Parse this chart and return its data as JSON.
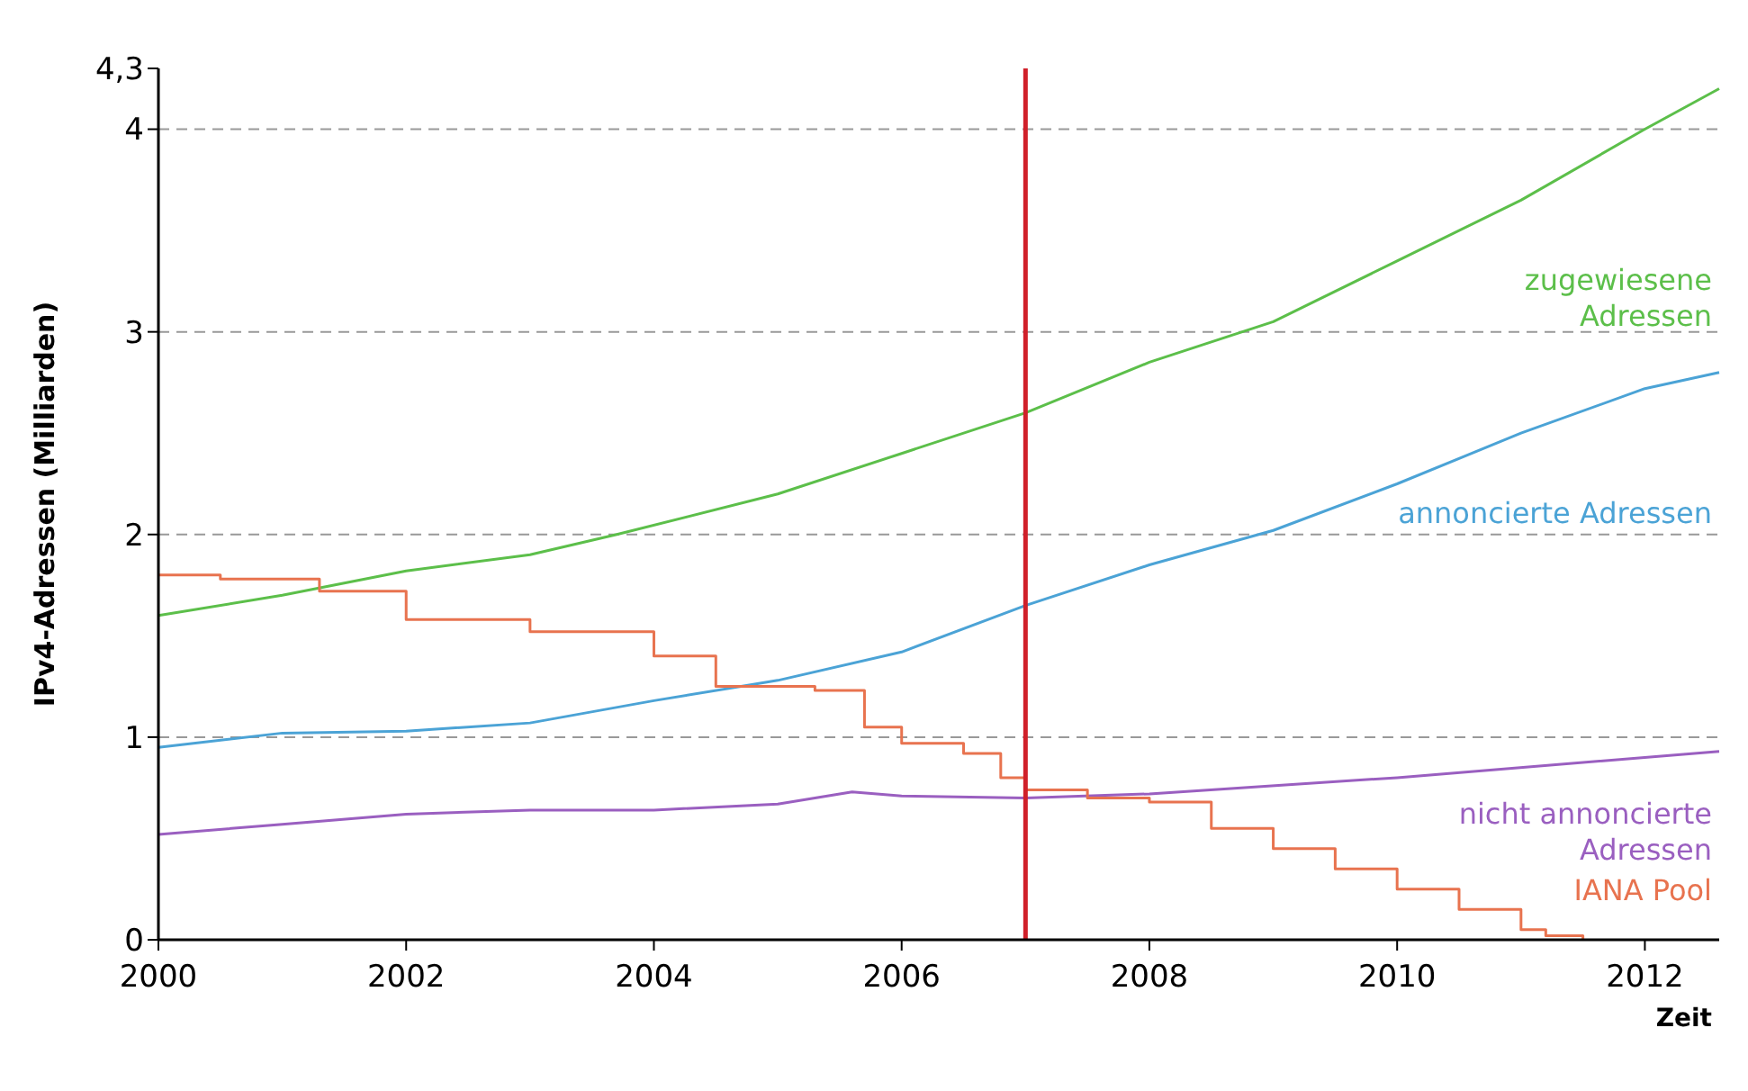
{
  "chart_data": {
    "type": "line",
    "xlabel": "Zeit",
    "ylabel": "IPv4-Adressen (Milliarden)",
    "xlim": [
      2000,
      2012.6
    ],
    "xticks": [
      2000,
      2002,
      2004,
      2006,
      2008,
      2010,
      2012
    ],
    "ylim": [
      0,
      4.3
    ],
    "yticks": [
      0,
      1,
      2,
      3,
      4,
      {
        "value": 4.3,
        "label": "4,3"
      }
    ],
    "grid": "y",
    "ref_lines": [
      {
        "axis": "x",
        "value": 2007,
        "color": "#d0202a"
      }
    ],
    "series": [
      {
        "name": "zugewiesene Adressen",
        "color": "#5cbf4a",
        "x": [
          2000,
          2001,
          2002,
          2003,
          2003.7,
          2005,
          2006,
          2007,
          2008,
          2009,
          2010,
          2011,
          2012,
          2012.6
        ],
        "values": [
          1.6,
          1.7,
          1.82,
          1.9,
          2.0,
          2.2,
          2.4,
          2.6,
          2.85,
          3.05,
          3.35,
          3.65,
          4.0,
          4.2
        ]
      },
      {
        "name": "annoncierte Adressen",
        "color": "#4ba3d6",
        "x": [
          2000,
          2001,
          2002,
          2003,
          2004,
          2005,
          2006,
          2007,
          2008,
          2009,
          2010,
          2011,
          2012,
          2012.6
        ],
        "values": [
          0.95,
          1.02,
          1.03,
          1.07,
          1.18,
          1.28,
          1.42,
          1.65,
          1.85,
          2.02,
          2.25,
          2.5,
          2.72,
          2.8
        ]
      },
      {
        "name": "nicht annoncierte Adressen",
        "color": "#9a5fc0",
        "x": [
          2000,
          2001,
          2002,
          2003,
          2004,
          2005,
          2005.6,
          2006,
          2007,
          2008,
          2010,
          2012.6
        ],
        "values": [
          0.52,
          0.57,
          0.62,
          0.64,
          0.64,
          0.67,
          0.73,
          0.71,
          0.7,
          0.72,
          0.8,
          0.93
        ]
      },
      {
        "name": "IANA Pool",
        "type": "step",
        "color": "#e8734f",
        "x": [
          2000,
          2000.5,
          2001.3,
          2002,
          2003,
          2004,
          2004.5,
          2005.3,
          2005.7,
          2006,
          2006.5,
          2006.8,
          2007,
          2007.5,
          2008,
          2008.5,
          2009,
          2009.5,
          2010,
          2010.5,
          2011,
          2011.2,
          2011.5
        ],
        "values": [
          1.8,
          1.78,
          1.72,
          1.58,
          1.52,
          1.4,
          1.25,
          1.23,
          1.05,
          0.97,
          0.92,
          0.8,
          0.74,
          0.7,
          0.68,
          0.55,
          0.45,
          0.35,
          0.25,
          0.15,
          0.05,
          0.02,
          0
        ]
      }
    ]
  }
}
